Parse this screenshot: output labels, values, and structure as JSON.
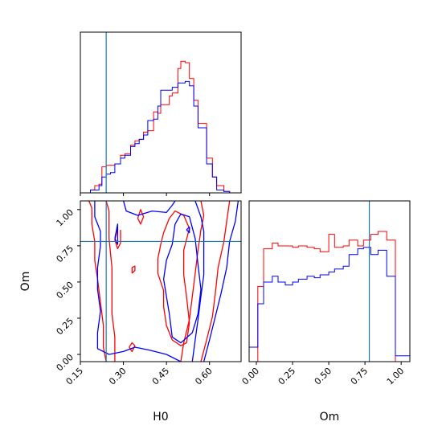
{
  "chart_data": {
    "type": "corner",
    "parameters": [
      "H0",
      "Om"
    ],
    "xlabel_H0": "H0",
    "xlabel_Om": "Om",
    "ylabel_Om": "Om",
    "truth": {
      "H0": 0.24,
      "Om": 0.78
    },
    "truth_color": "#1f77b4",
    "series": [
      {
        "color": "#ff0000"
      },
      {
        "color": "#0000ff"
      }
    ],
    "H0_axis": {
      "range": [
        0.15,
        0.71
      ],
      "ticks": [
        0.15,
        0.3,
        0.45,
        0.6
      ],
      "tick_labels": [
        "0.15",
        "0.30",
        "0.45",
        "0.60"
      ]
    },
    "Om_axis": {
      "range": [
        -0.05,
        1.06
      ],
      "ticks": [
        0.0,
        0.25,
        0.5,
        0.75,
        1.0
      ],
      "tick_labels": [
        "0.00",
        "0.25",
        "0.50",
        "0.75",
        "1.00"
      ]
    },
    "hist_H0": {
      "edges": [
        0.16,
        0.185,
        0.2,
        0.215,
        0.225,
        0.24,
        0.255,
        0.27,
        0.29,
        0.305,
        0.325,
        0.34,
        0.355,
        0.37,
        0.385,
        0.405,
        0.42,
        0.43,
        0.46,
        0.47,
        0.49,
        0.5,
        0.515,
        0.53,
        0.545,
        0.56,
        0.59,
        0.61,
        0.625,
        0.65,
        0.67
      ],
      "red": [
        0.0,
        0.02,
        0.05,
        0.06,
        0.18,
        0.19,
        0.19,
        0.2,
        0.26,
        0.27,
        0.33,
        0.36,
        0.37,
        0.42,
        0.43,
        0.56,
        0.55,
        0.61,
        0.67,
        0.69,
        0.86,
        0.91,
        0.9,
        0.79,
        0.64,
        0.48,
        0.24,
        0.11,
        0.05,
        0.01
      ],
      "blue": [
        0.0,
        0.02,
        0.02,
        0.05,
        0.11,
        0.13,
        0.14,
        0.2,
        0.24,
        0.26,
        0.32,
        0.34,
        0.37,
        0.4,
        0.5,
        0.51,
        0.6,
        0.71,
        0.71,
        0.73,
        0.76,
        0.76,
        0.77,
        0.74,
        0.6,
        0.45,
        0.2,
        0.11,
        0.02,
        0.01
      ]
    },
    "hist_Om": {
      "edges": [
        -0.05,
        0.01,
        0.05,
        0.11,
        0.15,
        0.2,
        0.25,
        0.29,
        0.35,
        0.4,
        0.44,
        0.5,
        0.54,
        0.6,
        0.64,
        0.7,
        0.74,
        0.79,
        0.84,
        0.9,
        0.96,
        1.06
      ],
      "red": [
        0.0,
        0.52,
        0.78,
        0.82,
        0.8,
        0.8,
        0.79,
        0.8,
        0.79,
        0.78,
        0.76,
        0.88,
        0.79,
        0.8,
        0.84,
        0.8,
        0.84,
        0.88,
        0.9,
        0.84,
        0.0
      ],
      "blue": [
        0.1,
        0.4,
        0.55,
        0.59,
        0.55,
        0.53,
        0.55,
        0.57,
        0.59,
        0.58,
        0.6,
        0.62,
        0.64,
        0.66,
        0.74,
        0.78,
        0.79,
        0.74,
        0.77,
        0.59,
        0.04
      ]
    },
    "contours": {
      "red": [
        [
          [
            0.18,
            1.06
          ],
          [
            0.19,
            1.01
          ],
          [
            0.19,
            0.9
          ],
          [
            0.2,
            0.78
          ],
          [
            0.2,
            0.65
          ],
          [
            0.21,
            0.52
          ],
          [
            0.22,
            0.36
          ],
          [
            0.23,
            0.2
          ],
          [
            0.23,
            0.05
          ],
          [
            0.24,
            -0.05
          ]
        ],
        [
          [
            0.24,
            1.06
          ],
          [
            0.25,
            0.99
          ],
          [
            0.25,
            0.8
          ],
          [
            0.26,
            0.6
          ],
          [
            0.26,
            0.45
          ],
          [
            0.26,
            0.28
          ],
          [
            0.27,
            0.12
          ],
          [
            0.27,
            0.03
          ],
          [
            0.27,
            -0.05
          ]
        ],
        [
          [
            0.46,
            0.94
          ],
          [
            0.44,
            0.84
          ],
          [
            0.43,
            0.76
          ],
          [
            0.42,
            0.66
          ],
          [
            0.42,
            0.56
          ],
          [
            0.44,
            0.44
          ],
          [
            0.44,
            0.33
          ],
          [
            0.45,
            0.2
          ],
          [
            0.47,
            0.1
          ],
          [
            0.5,
            0.06
          ],
          [
            0.52,
            0.08
          ],
          [
            0.53,
            0.22
          ],
          [
            0.52,
            0.4
          ],
          [
            0.51,
            0.55
          ],
          [
            0.51,
            0.72
          ],
          [
            0.53,
            0.87
          ],
          [
            0.51,
            0.96
          ],
          [
            0.48,
            0.99
          ],
          [
            0.46,
            0.94
          ]
        ],
        [
          [
            0.57,
            1.06
          ],
          [
            0.58,
            0.96
          ],
          [
            0.57,
            0.86
          ],
          [
            0.56,
            0.72
          ],
          [
            0.55,
            0.56
          ],
          [
            0.54,
            0.4
          ],
          [
            0.53,
            0.24
          ],
          [
            0.51,
            0.08
          ],
          [
            0.5,
            -0.05
          ]
        ],
        [
          [
            0.67,
            1.06
          ],
          [
            0.66,
            0.92
          ],
          [
            0.65,
            0.78
          ],
          [
            0.63,
            0.6
          ],
          [
            0.62,
            0.42
          ],
          [
            0.61,
            0.26
          ],
          [
            0.59,
            0.1
          ],
          [
            0.57,
            -0.05
          ]
        ],
        [
          [
            0.28,
            0.87
          ],
          [
            0.27,
            0.79
          ],
          [
            0.28,
            0.73
          ],
          [
            0.29,
            0.77
          ],
          [
            0.29,
            0.86
          ]
        ],
        [
          [
            0.33,
            0.56
          ],
          [
            0.34,
            0.58
          ],
          [
            0.34,
            0.61
          ],
          [
            0.33,
            0.6
          ],
          [
            0.33,
            0.56
          ]
        ],
        [
          [
            0.35,
            0.94
          ],
          [
            0.36,
            1.0
          ],
          [
            0.37,
            0.95
          ],
          [
            0.36,
            0.9
          ],
          [
            0.35,
            0.94
          ]
        ],
        [
          [
            0.32,
            0.05
          ],
          [
            0.33,
            0.02
          ],
          [
            0.34,
            0.06
          ],
          [
            0.33,
            0.08
          ],
          [
            0.32,
            0.05
          ]
        ]
      ],
      "blue": [
        [
          [
            0.2,
            1.06
          ],
          [
            0.2,
            0.95
          ],
          [
            0.22,
            0.85
          ],
          [
            0.22,
            0.75
          ],
          [
            0.21,
            0.6
          ],
          [
            0.21,
            0.45
          ],
          [
            0.22,
            0.3
          ],
          [
            0.21,
            0.15
          ],
          [
            0.21,
            0.04
          ],
          [
            0.25,
            0.0
          ],
          [
            0.3,
            0.02
          ],
          [
            0.34,
            0.05
          ],
          [
            0.39,
            0.03
          ],
          [
            0.45,
            0.0
          ],
          [
            0.5,
            -0.05
          ]
        ],
        [
          [
            0.3,
            1.06
          ],
          [
            0.31,
            0.99
          ],
          [
            0.35,
            0.96
          ],
          [
            0.4,
            0.99
          ],
          [
            0.45,
            0.98
          ],
          [
            0.47,
            1.03
          ],
          [
            0.48,
            1.06
          ]
        ],
        [
          [
            0.27,
            0.8
          ],
          [
            0.28,
            0.76
          ],
          [
            0.28,
            0.9
          ],
          [
            0.27,
            0.8
          ]
        ],
        [
          [
            0.44,
            0.52
          ],
          [
            0.45,
            0.65
          ],
          [
            0.47,
            0.76
          ],
          [
            0.48,
            0.9
          ],
          [
            0.5,
            0.97
          ],
          [
            0.53,
            0.95
          ],
          [
            0.55,
            0.8
          ],
          [
            0.56,
            0.62
          ],
          [
            0.57,
            0.45
          ],
          [
            0.56,
            0.28
          ],
          [
            0.54,
            0.15
          ],
          [
            0.5,
            0.08
          ],
          [
            0.47,
            0.12
          ],
          [
            0.46,
            0.28
          ],
          [
            0.45,
            0.4
          ],
          [
            0.44,
            0.52
          ]
        ],
        [
          [
            0.52,
            0.86
          ],
          [
            0.53,
            0.88
          ],
          [
            0.53,
            0.84
          ],
          [
            0.52,
            0.86
          ]
        ],
        [
          [
            0.55,
            1.06
          ],
          [
            0.57,
            0.95
          ],
          [
            0.58,
            0.85
          ],
          [
            0.58,
            0.7
          ],
          [
            0.58,
            0.55
          ],
          [
            0.57,
            0.4
          ],
          [
            0.56,
            0.24
          ],
          [
            0.55,
            0.1
          ],
          [
            0.54,
            -0.05
          ]
        ],
        [
          [
            0.7,
            1.06
          ],
          [
            0.69,
            0.92
          ],
          [
            0.67,
            0.78
          ],
          [
            0.66,
            0.6
          ],
          [
            0.64,
            0.42
          ],
          [
            0.62,
            0.26
          ],
          [
            0.6,
            0.1
          ],
          [
            0.58,
            -0.05
          ]
        ]
      ]
    }
  }
}
